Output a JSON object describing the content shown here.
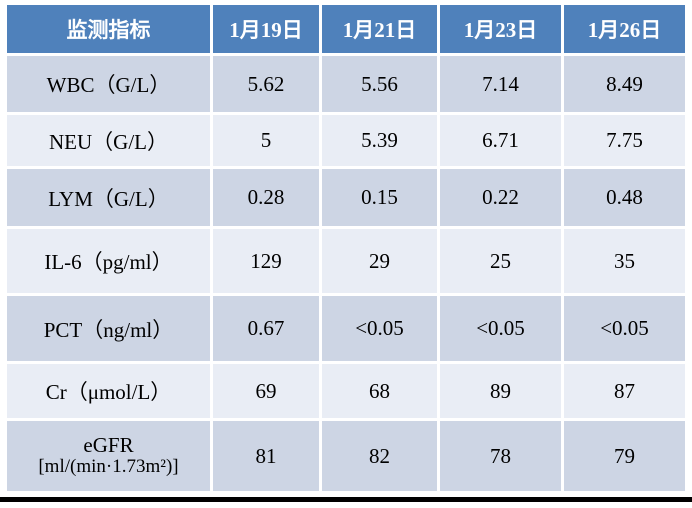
{
  "table": {
    "header": {
      "indicator_label": "监测指标",
      "dates": [
        "1月19日",
        "1月21日",
        "1月23日",
        "1月26日"
      ]
    },
    "rows": [
      {
        "label": "WBC（G/L）",
        "values": [
          "5.62",
          "5.56",
          "7.14",
          "8.49"
        ]
      },
      {
        "label": "NEU（G/L）",
        "values": [
          "5",
          "5.39",
          "6.71",
          "7.75"
        ]
      },
      {
        "label": "LYM（G/L）",
        "values": [
          "0.28",
          "0.15",
          "0.22",
          "0.48"
        ]
      },
      {
        "label": "IL-6（pg/ml）",
        "values": [
          "129",
          "29",
          "25",
          "35"
        ]
      },
      {
        "label": "PCT（ng/ml）",
        "values": [
          "0.67",
          "<0.05",
          "<0.05",
          "<0.05"
        ]
      },
      {
        "label": "Cr（μmol/L）",
        "values": [
          "69",
          "68",
          "89",
          "87"
        ]
      },
      {
        "label": "eGFR",
        "label_line2": "[ml/(min·1.73m²)]",
        "values": [
          "81",
          "82",
          "78",
          "79"
        ]
      }
    ]
  },
  "colors": {
    "header_bg": "#4f81bb",
    "header_text": "#ffffff",
    "row_dark": "#cdd5e4",
    "row_light": "#e9edf5",
    "body_text": "#000000",
    "bottom_bar": "#000000",
    "page_bg": "#ffffff"
  },
  "chart_data": {
    "type": "table",
    "title": "",
    "columns": [
      "监测指标",
      "1月19日",
      "1月21日",
      "1月23日",
      "1月26日"
    ],
    "rows": [
      [
        "WBC（G/L）",
        "5.62",
        "5.56",
        "7.14",
        "8.49"
      ],
      [
        "NEU（G/L）",
        "5",
        "5.39",
        "6.71",
        "7.75"
      ],
      [
        "LYM（G/L）",
        "0.28",
        "0.15",
        "0.22",
        "0.48"
      ],
      [
        "IL-6（pg/ml）",
        "129",
        "29",
        "25",
        "35"
      ],
      [
        "PCT（ng/ml）",
        "0.67",
        "<0.05",
        "<0.05",
        "<0.05"
      ],
      [
        "Cr（μmol/L）",
        "69",
        "68",
        "89",
        "87"
      ],
      [
        "eGFR [ml/(min·1.73m²)]",
        "81",
        "82",
        "78",
        "79"
      ]
    ]
  }
}
